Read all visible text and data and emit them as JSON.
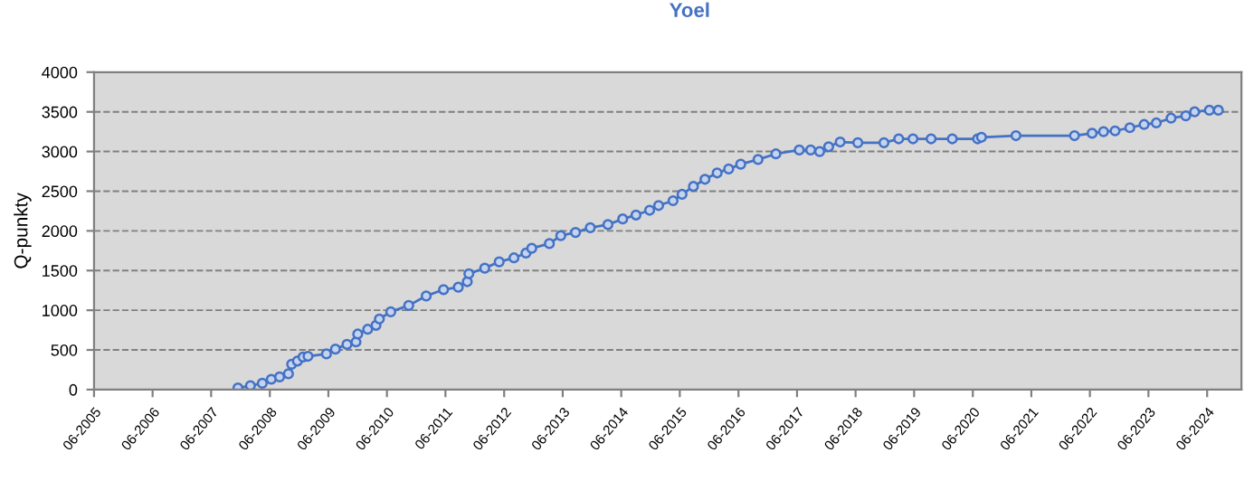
{
  "chart_data": {
    "type": "line",
    "title": "Yoel",
    "ylabel": "Q-punkty",
    "x": [
      "2007-11-15",
      "2008-02-01",
      "2008-04-15",
      "2008-06-10",
      "2008-08-01",
      "2008-09-25",
      "2008-10-15",
      "2008-11-20",
      "2008-12-25",
      "2009-01-25",
      "2009-05-20",
      "2009-07-15",
      "2009-09-25",
      "2009-11-20",
      "2009-12-01",
      "2010-02-01",
      "2010-03-25",
      "2010-04-15",
      "2010-06-25",
      "2010-10-15",
      "2011-02-01",
      "2011-05-20",
      "2011-08-20",
      "2011-10-15",
      "2011-10-25",
      "2012-02-01",
      "2012-05-01",
      "2012-08-01",
      "2012-10-15",
      "2012-11-20",
      "2013-03-10",
      "2013-05-20",
      "2013-08-20",
      "2013-11-20",
      "2014-03-10",
      "2014-06-10",
      "2014-09-01",
      "2014-11-25",
      "2015-01-20",
      "2015-04-20",
      "2015-06-15",
      "2015-08-25",
      "2015-11-05",
      "2016-01-20",
      "2016-04-01",
      "2016-06-15",
      "2016-10-01",
      "2017-01-20",
      "2017-06-15",
      "2017-08-25",
      "2017-10-20",
      "2017-12-15",
      "2018-02-25",
      "2018-06-15",
      "2018-11-25",
      "2019-02-25",
      "2019-05-25",
      "2019-09-15",
      "2020-01-25",
      "2020-07-01",
      "2020-07-25",
      "2021-02-25",
      "2022-02-25",
      "2022-06-15",
      "2022-08-25",
      "2022-11-05",
      "2023-02-05",
      "2023-05-05",
      "2023-07-20",
      "2023-10-20",
      "2024-01-20",
      "2024-03-15",
      "2024-06-15",
      "2024-08-10"
    ],
    "series": [
      {
        "color": "#4472c4",
        "values": [
          20,
          50,
          80,
          130,
          160,
          200,
          320,
          360,
          410,
          420,
          450,
          510,
          570,
          600,
          700,
          760,
          810,
          890,
          980,
          1060,
          1180,
          1260,
          1290,
          1360,
          1460,
          1530,
          1610,
          1660,
          1720,
          1780,
          1840,
          1940,
          1980,
          2040,
          2080,
          2150,
          2200,
          2260,
          2320,
          2380,
          2460,
          2560,
          2650,
          2730,
          2780,
          2840,
          2900,
          2970,
          3020,
          3020,
          3000,
          3060,
          3120,
          3110,
          3110,
          3160,
          3160,
          3160,
          3160,
          3160,
          3180,
          3200,
          3200,
          3230,
          3250,
          3260,
          3300,
          3340,
          3360,
          3420,
          3450,
          3500,
          3520,
          3520
        ]
      }
    ],
    "xlim": [
      "2005-06-01",
      "2025-01-01"
    ],
    "xticks": [
      {
        "value": "2005-06-01",
        "label": "06-2005"
      },
      {
        "value": "2006-06-01",
        "label": "06-2006"
      },
      {
        "value": "2007-06-01",
        "label": "06-2007"
      },
      {
        "value": "2008-06-01",
        "label": "06-2008"
      },
      {
        "value": "2009-06-01",
        "label": "06-2009"
      },
      {
        "value": "2010-06-01",
        "label": "06-2010"
      },
      {
        "value": "2011-06-01",
        "label": "06-2011"
      },
      {
        "value": "2012-06-01",
        "label": "06-2012"
      },
      {
        "value": "2013-06-01",
        "label": "06-2013"
      },
      {
        "value": "2014-06-01",
        "label": "06-2014"
      },
      {
        "value": "2015-06-01",
        "label": "06-2015"
      },
      {
        "value": "2016-06-01",
        "label": "06-2016"
      },
      {
        "value": "2017-06-01",
        "label": "06-2017"
      },
      {
        "value": "2018-06-01",
        "label": "06-2018"
      },
      {
        "value": "2019-06-01",
        "label": "06-2019"
      },
      {
        "value": "2020-06-01",
        "label": "06-2020"
      },
      {
        "value": "2021-06-01",
        "label": "06-2021"
      },
      {
        "value": "2022-06-01",
        "label": "06-2022"
      },
      {
        "value": "2023-06-01",
        "label": "06-2023"
      },
      {
        "value": "2024-06-01",
        "label": "06-2024"
      }
    ],
    "ylim": [
      0,
      4000
    ],
    "yticks": [
      0,
      500,
      1000,
      1500,
      2000,
      2500,
      3000,
      3500,
      4000
    ],
    "grid": "y",
    "marker": "circle",
    "line_style": "solid"
  }
}
